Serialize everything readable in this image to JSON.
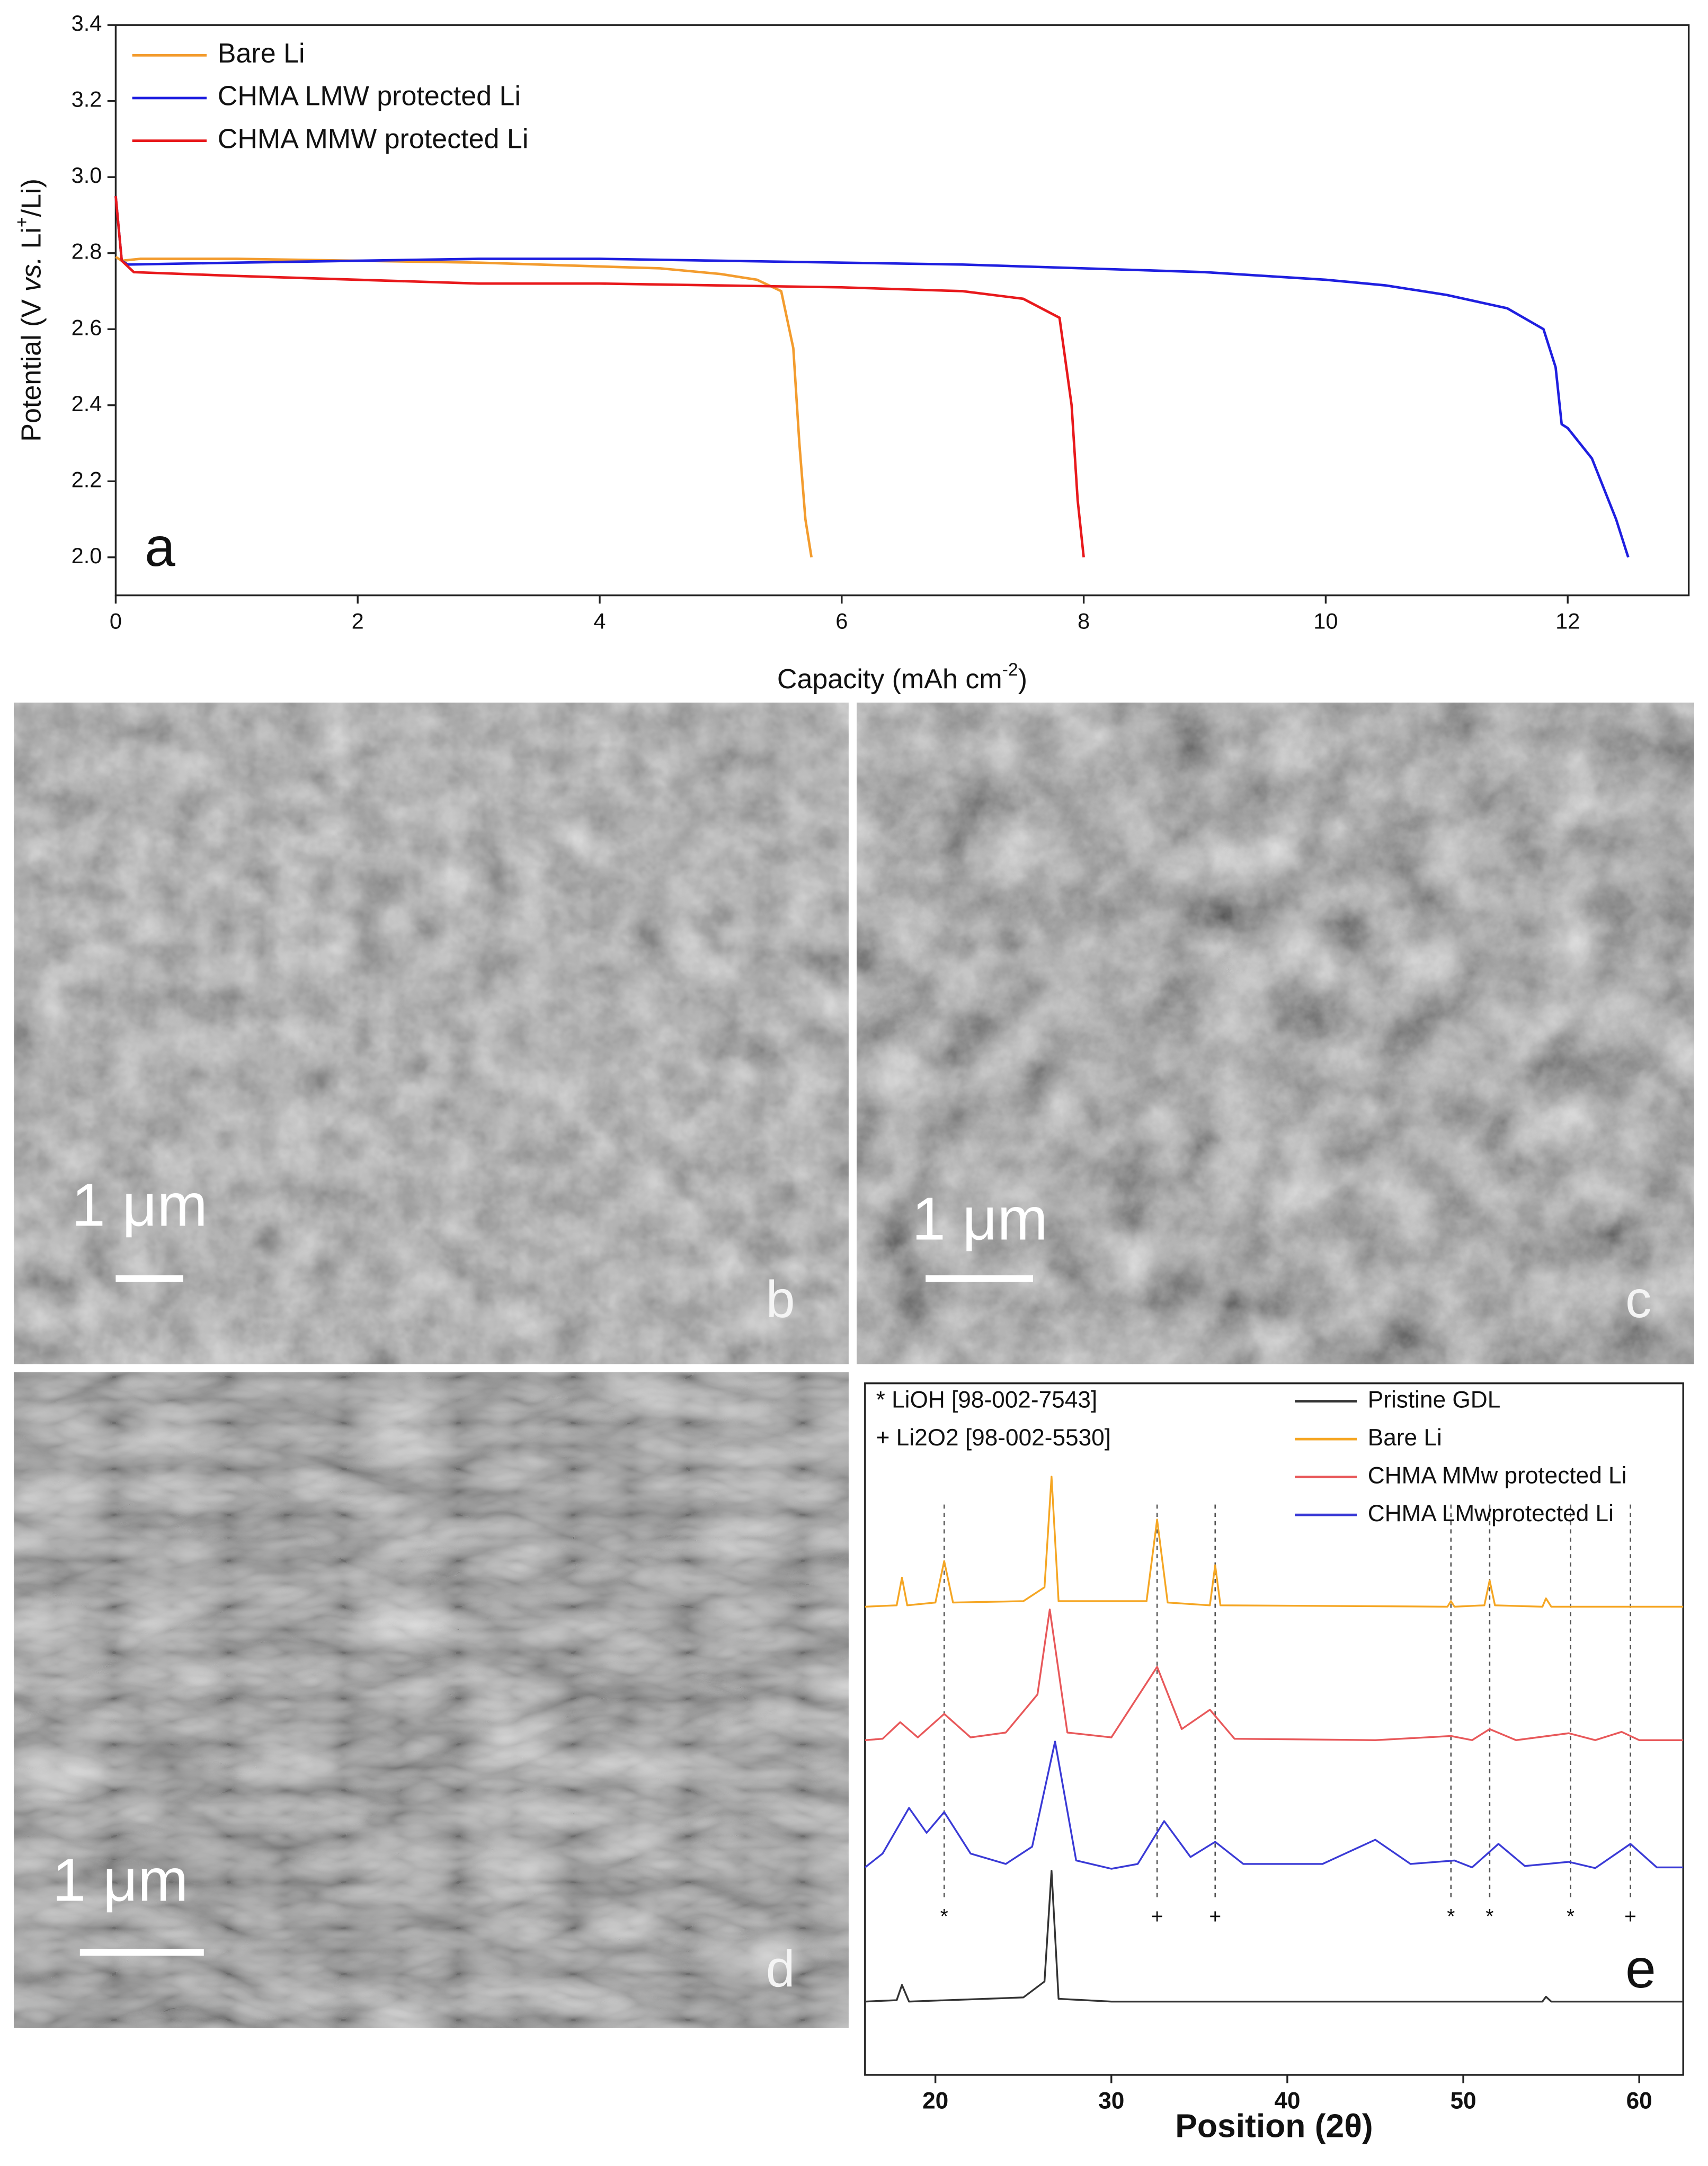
{
  "chart_data": [
    {
      "type": "line",
      "panel_label": "a",
      "xlabel": [
        {
          "text": "Capacity (mAh cm"
        },
        {
          "text": "-2",
          "sup": true
        },
        {
          "text": ")"
        }
      ],
      "ylabel": [
        {
          "text": "Potential (V "
        },
        {
          "text": "vs.",
          "italic": true
        },
        {
          "text": " Li"
        },
        {
          "text": "+",
          "sup": true
        },
        {
          "text": "/Li)"
        }
      ],
      "xlim": [
        0,
        13
      ],
      "ylim": [
        1.9,
        3.4
      ],
      "xticks": [
        0,
        2,
        4,
        6,
        8,
        10,
        12
      ],
      "yticks": [
        {
          "value": 2,
          "label": "2.0"
        },
        2.2,
        2.4,
        2.6,
        2.8,
        {
          "value": 3,
          "label": "3.0"
        },
        3.2,
        3.4
      ],
      "legend": "upper left",
      "series": [
        {
          "name": "Bare Li",
          "color": "#f39c2e",
          "x": [
            0,
            0.05,
            0.2,
            1,
            2,
            3,
            4,
            4.5,
            5,
            5.3,
            5.5,
            5.6,
            5.65,
            5.7,
            5.75
          ],
          "values": [
            2.79,
            2.78,
            2.785,
            2.785,
            2.78,
            2.775,
            2.765,
            2.76,
            2.745,
            2.73,
            2.7,
            2.55,
            2.3,
            2.1,
            2.0
          ]
        },
        {
          "name": "CHMA LMW protected Li",
          "color": "#1f1fe0",
          "x": [
            0,
            0.05,
            0.1,
            1,
            2,
            3,
            4,
            5,
            6,
            7,
            8,
            9,
            10,
            10.5,
            11,
            11.5,
            11.8,
            11.9,
            11.95,
            12.0,
            12.2,
            12.4,
            12.5
          ],
          "values": [
            2.95,
            2.78,
            2.77,
            2.775,
            2.78,
            2.785,
            2.785,
            2.78,
            2.775,
            2.77,
            2.76,
            2.75,
            2.73,
            2.715,
            2.69,
            2.655,
            2.6,
            2.5,
            2.35,
            2.34,
            2.26,
            2.1,
            2.0
          ]
        },
        {
          "name": "CHMA MMW protected Li",
          "color": "#e8191c",
          "x": [
            0,
            0.05,
            0.15,
            1,
            2,
            3,
            4,
            5,
            6,
            7,
            7.5,
            7.8,
            7.9,
            7.95,
            8.0
          ],
          "values": [
            2.95,
            2.78,
            2.75,
            2.74,
            2.73,
            2.72,
            2.72,
            2.715,
            2.71,
            2.7,
            2.68,
            2.63,
            2.4,
            2.15,
            2.0
          ]
        }
      ]
    },
    {
      "type": "line",
      "panel_label": "e",
      "xlabel": [
        {
          "text": "Position (2θ)"
        }
      ],
      "xlim": [
        16,
        62.5
      ],
      "ylim": [
        0,
        100
      ],
      "xticks": [
        20,
        30,
        40,
        50,
        60
      ],
      "legend": "upper right",
      "annotations": [
        "* LiOH [98-002-7543]",
        "+ Li2O2 [98-002-5530]"
      ],
      "reflections": [
        {
          "x": 20.5,
          "symbol": "*"
        },
        {
          "x": 32.6,
          "symbol": "+"
        },
        {
          "x": 35.9,
          "symbol": "+"
        },
        {
          "x": 49.3,
          "symbol": "*"
        },
        {
          "x": 51.5,
          "symbol": "*"
        },
        {
          "x": 56.1,
          "symbol": "*"
        },
        {
          "x": 59.5,
          "symbol": "+"
        }
      ],
      "series": [
        {
          "name": "Pristine GDL",
          "color": "#333333",
          "x": [
            16,
            17.8,
            18.1,
            18.5,
            25,
            26.2,
            26.6,
            27,
            30,
            54.5,
            54.7,
            55,
            62.5
          ],
          "values": [
            10.6,
            10.8,
            13,
            10.6,
            11.2,
            13.5,
            29.5,
            11,
            10.6,
            10.6,
            11.3,
            10.6,
            10.6
          ]
        },
        {
          "name": "Bare Li",
          "color": "#f5a623",
          "x": [
            16,
            17.8,
            18.1,
            18.4,
            20,
            20.5,
            21,
            25,
            26.2,
            26.6,
            27,
            32,
            32.6,
            33.2,
            35.6,
            35.9,
            36.2,
            49.1,
            49.3,
            49.5,
            51.2,
            51.5,
            51.8,
            54.5,
            54.7,
            55,
            62.5
          ],
          "values": [
            67.7,
            67.9,
            71.9,
            67.9,
            68.3,
            74.3,
            68.3,
            68.5,
            70.5,
            86.5,
            68.5,
            68.5,
            80.3,
            68.3,
            67.9,
            73.7,
            67.9,
            67.7,
            68.5,
            67.7,
            67.9,
            71.5,
            67.9,
            67.7,
            68.9,
            67.7,
            67.7
          ]
        },
        {
          "name": "CHMA MMw protected Li",
          "color": "#e8585a",
          "x": [
            16,
            17,
            18,
            19,
            20.5,
            22,
            24,
            25.8,
            26.5,
            27.5,
            30,
            32.6,
            34,
            35.6,
            37,
            45,
            49.3,
            50.5,
            51.5,
            53,
            56,
            57.5,
            59,
            60,
            62.5
          ],
          "values": [
            48.4,
            48.6,
            51,
            48.8,
            52.2,
            48.8,
            49.5,
            55,
            67.3,
            49.5,
            48.8,
            59,
            50,
            52.8,
            48.6,
            48.4,
            49,
            48.4,
            50,
            48.4,
            49.4,
            48.4,
            49.6,
            48.4,
            48.4
          ]
        },
        {
          "name": "CHMA LMwprotected Li",
          "color": "#3a3ad6",
          "x": [
            16,
            17,
            18.5,
            19.5,
            20.5,
            22,
            24,
            25.5,
            26.8,
            28,
            30,
            31.5,
            33,
            34.5,
            35.9,
            37.5,
            42,
            45,
            47,
            49.5,
            50.5,
            52,
            53.5,
            56,
            57.5,
            59.5,
            61,
            62.5
          ],
          "values": [
            30,
            32,
            38.6,
            35,
            38,
            32,
            30.5,
            33,
            48.2,
            31,
            29.8,
            30.5,
            36.7,
            31.5,
            33.7,
            30.5,
            30.5,
            34,
            30.5,
            31,
            30,
            33.4,
            30.2,
            30.8,
            29.9,
            33.4,
            30,
            30
          ]
        }
      ]
    }
  ],
  "images": {
    "b": {
      "scale_bar": "1 μm",
      "label": "b"
    },
    "c": {
      "scale_bar": "1 μm",
      "label": "c"
    },
    "d": {
      "scale_bar": "1 μm",
      "label": "d"
    }
  }
}
